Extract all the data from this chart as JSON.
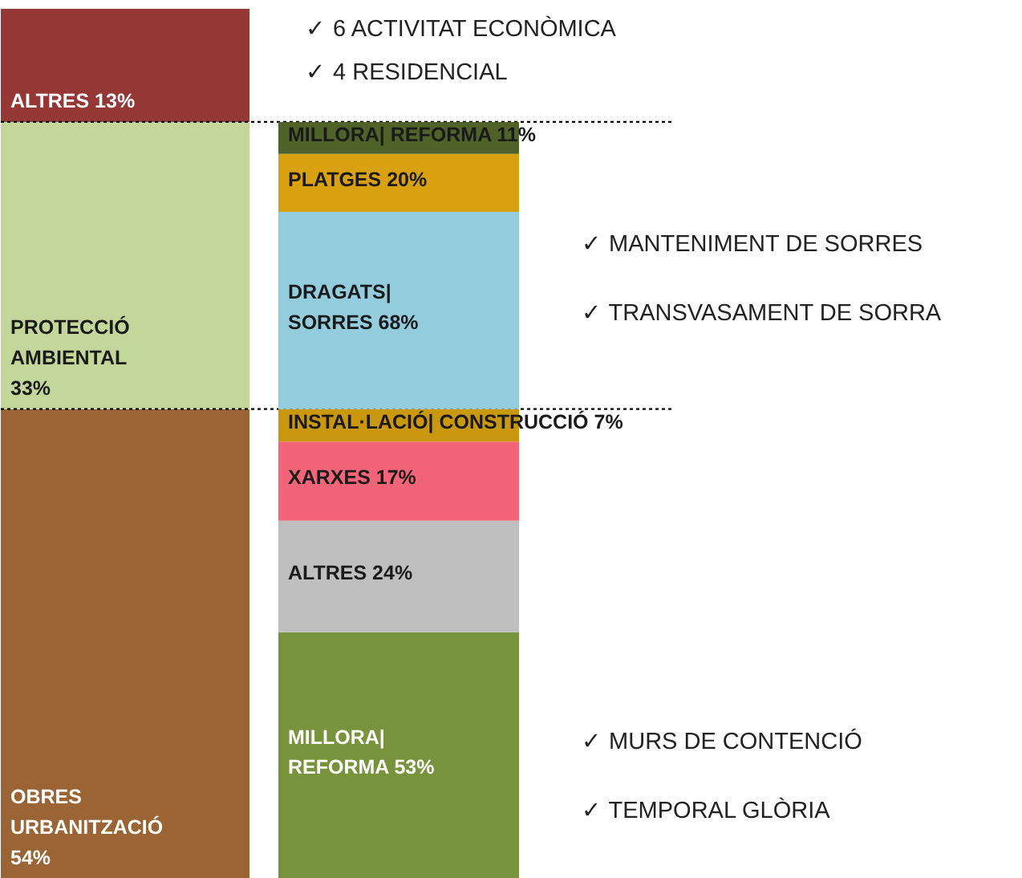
{
  "chart_data": [
    {
      "type": "bar",
      "stacked": true,
      "categories": [
        null
      ],
      "series": [
        {
          "color": "#9a6434",
          "values": [
            54
          ],
          "value_labels": [
            "OBRES\nURBANITZACIÓ\n54%"
          ]
        },
        {
          "color": "#c4d79b",
          "values": [
            33
          ],
          "value_labels": [
            "PROTECCIÓ\nAMBIENTAL\n33%"
          ]
        },
        {
          "color": "#953735",
          "values": [
            13
          ],
          "value_labels": [
            "ALTRES 13%"
          ]
        }
      ],
      "ref_lines": [
        {
          "axis": "y",
          "value": 54,
          "line_style": "dotted",
          "color": "#000000"
        },
        {
          "axis": "y",
          "value": 87,
          "line_style": "dotted",
          "color": "#000000"
        }
      ],
      "annotations": [
        "✓  6 ACTIVITAT ECONÒMICA",
        "✓  4 RESIDENCIAL"
      ]
    },
    {
      "type": "bar",
      "stacked": true,
      "categories": [
        null
      ],
      "series": [
        {
          "color": "#77933c",
          "values": [
            53
          ],
          "value_labels": [
            "MILLORA|\nREFORMA 53%"
          ]
        },
        {
          "color": "#bfbfbf",
          "values": [
            24
          ],
          "value_labels": [
            "ALTRES 24%"
          ]
        },
        {
          "color": "#f46478",
          "values": [
            17
          ],
          "value_labels": [
            "XARXES 17%"
          ]
        },
        {
          "color": "#c9980f",
          "values": [
            7
          ],
          "value_labels": [
            "INSTAL·LACIÓ| CONSTRUCCIÓ 7%"
          ]
        }
      ],
      "annotations": [
        "✓  MURS DE CONTENCIÓ",
        "✓  TEMPORAL GLÒRIA"
      ]
    },
    {
      "type": "bar",
      "stacked": true,
      "categories": [
        null
      ],
      "series": [
        {
          "color": "#93cddd",
          "values": [
            68
          ],
          "value_labels": [
            "DRAGATS|\nSORRES 68%"
          ]
        },
        {
          "color": "#d9a010",
          "values": [
            20
          ],
          "value_labels": [
            "PLATGES 20%"
          ]
        },
        {
          "color": "#4f6228",
          "values": [
            11
          ],
          "value_labels": [
            "MILLORA| REFORMA 11%"
          ]
        }
      ],
      "annotations": [
        "✓  MANTENIMENT DE SORRES",
        "✓  TRANSVASAMENT DE SORRA"
      ]
    }
  ]
}
